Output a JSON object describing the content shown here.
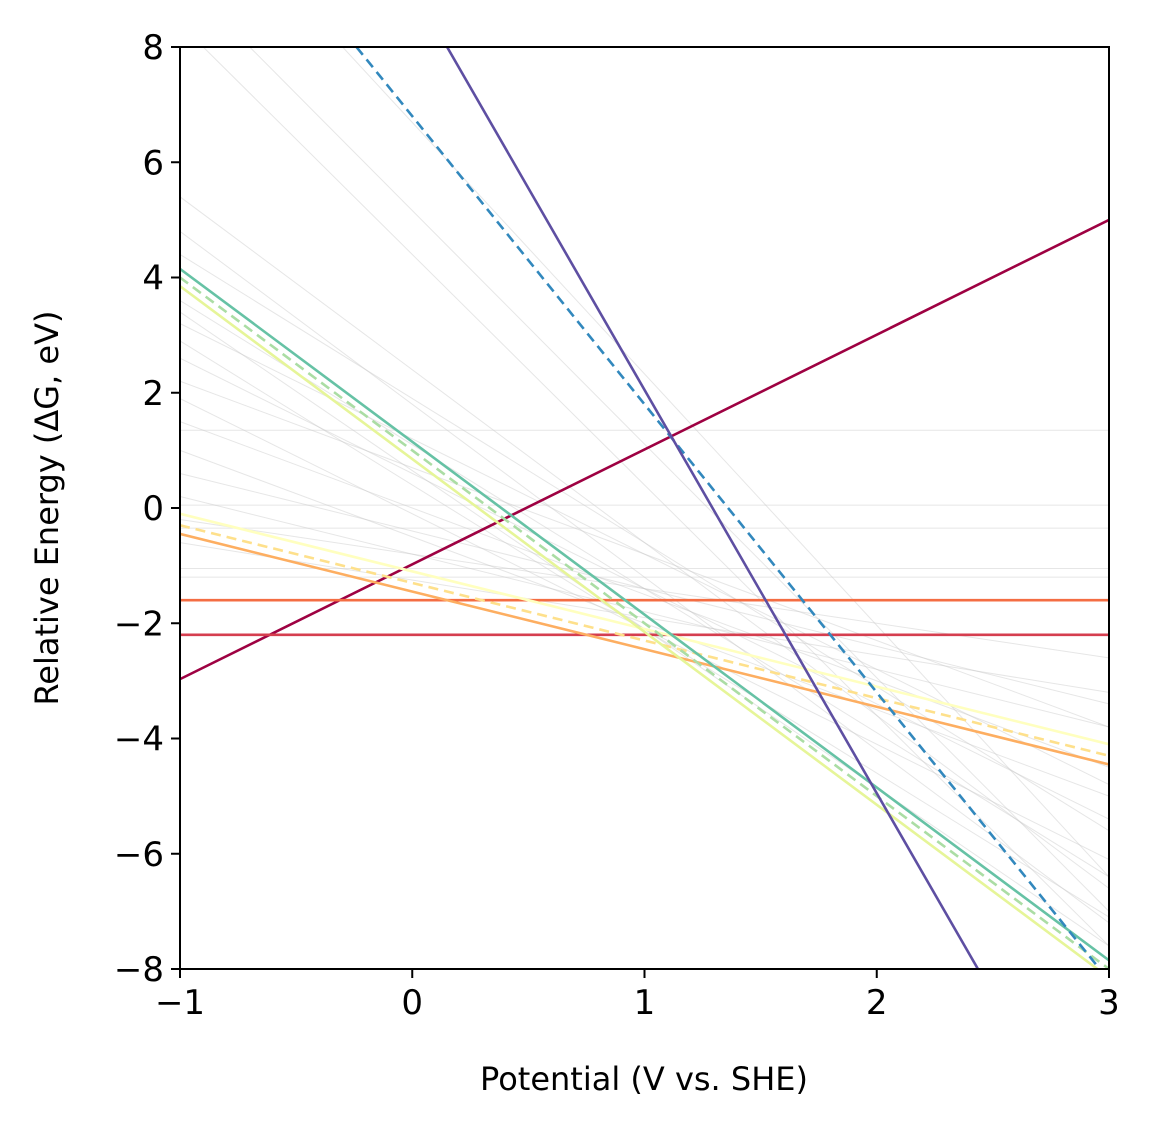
{
  "chart_data": {
    "type": "line",
    "title": "",
    "xlabel": "Potential (V vs. SHE)",
    "ylabel": "Relative Energy (ΔG, eV)",
    "xlim": [
      -1,
      3
    ],
    "ylim": [
      -8,
      8
    ],
    "xticks": [
      -1,
      0,
      1,
      2,
      3
    ],
    "xtick_labels": [
      "−1",
      "0",
      "1",
      "2",
      "3"
    ],
    "yticks": [
      -8,
      -6,
      -4,
      -2,
      0,
      2,
      4,
      6,
      8
    ],
    "ytick_labels": [
      "−8",
      "−6",
      "−4",
      "−2",
      "0",
      "2",
      "4",
      "6",
      "8"
    ],
    "grid": false,
    "legend": "none",
    "series": [
      {
        "x": [
          -1,
          3
        ],
        "y": [
          -2.97,
          5.0
        ],
        "color": "#9e0142",
        "style": "solid"
      },
      {
        "x": [
          -1,
          3
        ],
        "y": [
          -2.2,
          -2.2
        ],
        "color": "#d53e4f",
        "style": "solid"
      },
      {
        "x": [
          -1,
          3
        ],
        "y": [
          -1.6,
          -1.6
        ],
        "color": "#f46d43",
        "style": "solid"
      },
      {
        "x": [
          -1,
          3
        ],
        "y": [
          -0.45,
          -4.45
        ],
        "color": "#fdae61",
        "style": "solid"
      },
      {
        "x": [
          -1,
          3
        ],
        "y": [
          -0.3,
          -4.3
        ],
        "color": "#fee08b",
        "style": "dashed"
      },
      {
        "x": [
          -1,
          3
        ],
        "y": [
          -0.1,
          -4.1
        ],
        "color": "#ffffbf",
        "style": "solid"
      },
      {
        "x": [
          -1,
          3
        ],
        "y": [
          3.85,
          -8.15
        ],
        "color": "#e6f598",
        "style": "solid"
      },
      {
        "x": [
          -1,
          3
        ],
        "y": [
          4.0,
          -8.0
        ],
        "color": "#abdda4",
        "style": "dashed"
      },
      {
        "x": [
          -1,
          3
        ],
        "y": [
          4.15,
          -7.85
        ],
        "color": "#66c2a5",
        "style": "solid"
      },
      {
        "x": [
          -0.24,
          3
        ],
        "y": [
          8.0,
          -8.2
        ],
        "color": "#3288bd",
        "style": "dashed"
      },
      {
        "x": [
          0.15,
          2.45
        ],
        "y": [
          8.0,
          -8.1
        ],
        "color": "#5e4fa2",
        "style": "solid"
      }
    ],
    "background_series": [
      {
        "x": [
          -1,
          3
        ],
        "y": [
          1.35,
          1.35
        ]
      },
      {
        "x": [
          -1,
          3
        ],
        "y": [
          0.05,
          0.05
        ]
      },
      {
        "x": [
          -1,
          3
        ],
        "y": [
          -0.35,
          -0.35
        ]
      },
      {
        "x": [
          -1,
          3
        ],
        "y": [
          -1.05,
          -1.05
        ]
      },
      {
        "x": [
          -1,
          3
        ],
        "y": [
          -1.2,
          -1.2
        ]
      },
      {
        "x": [
          -1,
          3
        ],
        "y": [
          0.2,
          -3.8
        ]
      },
      {
        "x": [
          -1,
          3
        ],
        "y": [
          0.6,
          -3.4
        ]
      },
      {
        "x": [
          -1,
          3
        ],
        "y": [
          -0.6,
          -3.2
        ]
      },
      {
        "x": [
          -1,
          3
        ],
        "y": [
          1.5,
          -4.5
        ]
      },
      {
        "x": [
          -1,
          3
        ],
        "y": [
          2.2,
          -3.8
        ]
      },
      {
        "x": [
          -1,
          3
        ],
        "y": [
          2.6,
          -5.4
        ]
      },
      {
        "x": [
          -1,
          3
        ],
        "y": [
          3.2,
          -4.8
        ]
      },
      {
        "x": [
          -1,
          3
        ],
        "y": [
          3.6,
          -6.4
        ]
      },
      {
        "x": [
          -1,
          3
        ],
        "y": [
          4.4,
          -5.6
        ]
      },
      {
        "x": [
          -1,
          3
        ],
        "y": [
          4.8,
          -7.2
        ]
      },
      {
        "x": [
          -1,
          3
        ],
        "y": [
          5.4,
          -6.6
        ]
      },
      {
        "x": [
          -1,
          3
        ],
        "y": [
          3.4,
          -7.6
        ]
      },
      {
        "x": [
          -1,
          3
        ],
        "y": [
          2.9,
          -7.1
        ]
      },
      {
        "x": [
          -1,
          3
        ],
        "y": [
          1.9,
          -6.1
        ]
      },
      {
        "x": [
          -1,
          3
        ],
        "y": [
          1.0,
          -5.0
        ]
      },
      {
        "x": [
          -1,
          3
        ],
        "y": [
          -0.2,
          -2.6
        ]
      },
      {
        "x": [
          -0.7,
          3
        ],
        "y": [
          8.0,
          -7.0
        ]
      },
      {
        "x": [
          -0.3,
          3
        ],
        "y": [
          8.0,
          -6.4
        ]
      },
      {
        "x": [
          -0.9,
          3
        ],
        "y": [
          8.0,
          -7.6
        ]
      }
    ]
  }
}
